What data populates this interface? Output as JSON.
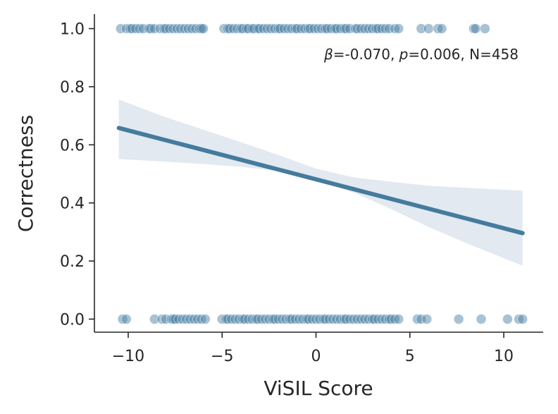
{
  "chart_data": {
    "type": "scatter",
    "xlabel": "ViSIL Score",
    "ylabel": "Correctness",
    "xlim": [
      -11.8,
      12.1
    ],
    "ylim": [
      -0.045,
      1.05
    ],
    "xticks": [
      -10,
      -5,
      0,
      5,
      10
    ],
    "xtick_labels": [
      "−10",
      "−5",
      "0",
      "5",
      "10"
    ],
    "yticks": [
      0.0,
      0.2,
      0.4,
      0.6,
      0.8,
      1.0
    ],
    "ytick_labels": [
      "0.0",
      "0.2",
      "0.4",
      "0.6",
      "0.8",
      "1.0"
    ],
    "grid": false,
    "annotation": {
      "beta_symbol": "β",
      "beta_text": "=-0.070, ",
      "p_symbol": "p",
      "p_text": "=0.006, N=458"
    },
    "colors": {
      "points": "#4a7fa6",
      "line": "#457b9d",
      "band": "#c5d3e2"
    },
    "regression": {
      "x": [
        -10.5,
        11.0
      ],
      "y": [
        0.658,
        0.296
      ]
    },
    "confidence_band": {
      "x": [
        -10.5,
        -8,
        -6,
        -4,
        -2,
        0,
        2,
        4,
        6,
        8,
        11.0
      ],
      "upper": [
        0.756,
        0.695,
        0.652,
        0.609,
        0.565,
        0.518,
        0.488,
        0.473,
        0.459,
        0.452,
        0.442
      ],
      "lower": [
        0.551,
        0.542,
        0.534,
        0.524,
        0.51,
        0.48,
        0.436,
        0.379,
        0.317,
        0.262,
        0.184
      ]
    },
    "points_correct": [
      -10.4,
      -10.1,
      -9.9,
      -9.8,
      -9.6,
      -9.4,
      -9.2,
      -8.9,
      -8.8,
      -8.6,
      -8.3,
      -8.1,
      -8.0,
      -7.8,
      -7.6,
      -7.4,
      -7.2,
      -7.0,
      -6.8,
      -6.6,
      -6.4,
      -6.2,
      -6.1,
      -6.0,
      -4.9,
      -4.7,
      -4.6,
      -4.4,
      -4.2,
      -4.0,
      -3.9,
      -3.7,
      -3.6,
      -3.4,
      -3.3,
      -3.1,
      -3.0,
      -2.8,
      -2.6,
      -2.4,
      -2.2,
      -2.0,
      -1.9,
      -1.7,
      -1.5,
      -1.3,
      -1.1,
      -1.0,
      -0.8,
      -0.6,
      -0.4,
      -0.3,
      -0.1,
      0.1,
      0.3,
      0.5,
      0.6,
      0.8,
      1.0,
      1.1,
      1.3,
      1.5,
      1.6,
      1.8,
      2.1,
      2.2,
      2.4,
      2.6,
      2.8,
      3.0,
      3.2,
      3.3,
      3.5,
      3.7,
      3.9,
      4.2,
      4.4,
      5.6,
      6.0,
      6.5,
      6.7,
      8.4,
      8.5,
      9.0
    ],
    "points_incorrect": [
      -10.3,
      -10.1,
      -8.6,
      -8.2,
      -8.0,
      -7.7,
      -7.6,
      -7.5,
      -7.3,
      -7.1,
      -6.9,
      -6.7,
      -6.5,
      -6.3,
      -6.1,
      -5.9,
      -5.0,
      -4.8,
      -4.7,
      -4.5,
      -4.3,
      -4.1,
      -3.9,
      -3.8,
      -3.6,
      -3.4,
      -3.2,
      -3.1,
      -2.9,
      -2.7,
      -2.5,
      -2.3,
      -2.2,
      -2.0,
      -1.8,
      -1.6,
      -1.4,
      -1.3,
      -1.1,
      -0.9,
      -0.7,
      -0.5,
      -0.4,
      -0.2,
      0.0,
      0.2,
      0.4,
      0.5,
      0.7,
      0.9,
      1.1,
      1.3,
      1.5,
      1.6,
      1.8,
      2.0,
      2.2,
      2.4,
      2.6,
      2.8,
      3.0,
      3.1,
      3.3,
      3.5,
      3.7,
      3.9,
      4.0,
      4.2,
      4.4,
      5.4,
      5.6,
      5.9,
      7.6,
      8.8,
      10.2,
      10.8,
      11.0
    ]
  }
}
